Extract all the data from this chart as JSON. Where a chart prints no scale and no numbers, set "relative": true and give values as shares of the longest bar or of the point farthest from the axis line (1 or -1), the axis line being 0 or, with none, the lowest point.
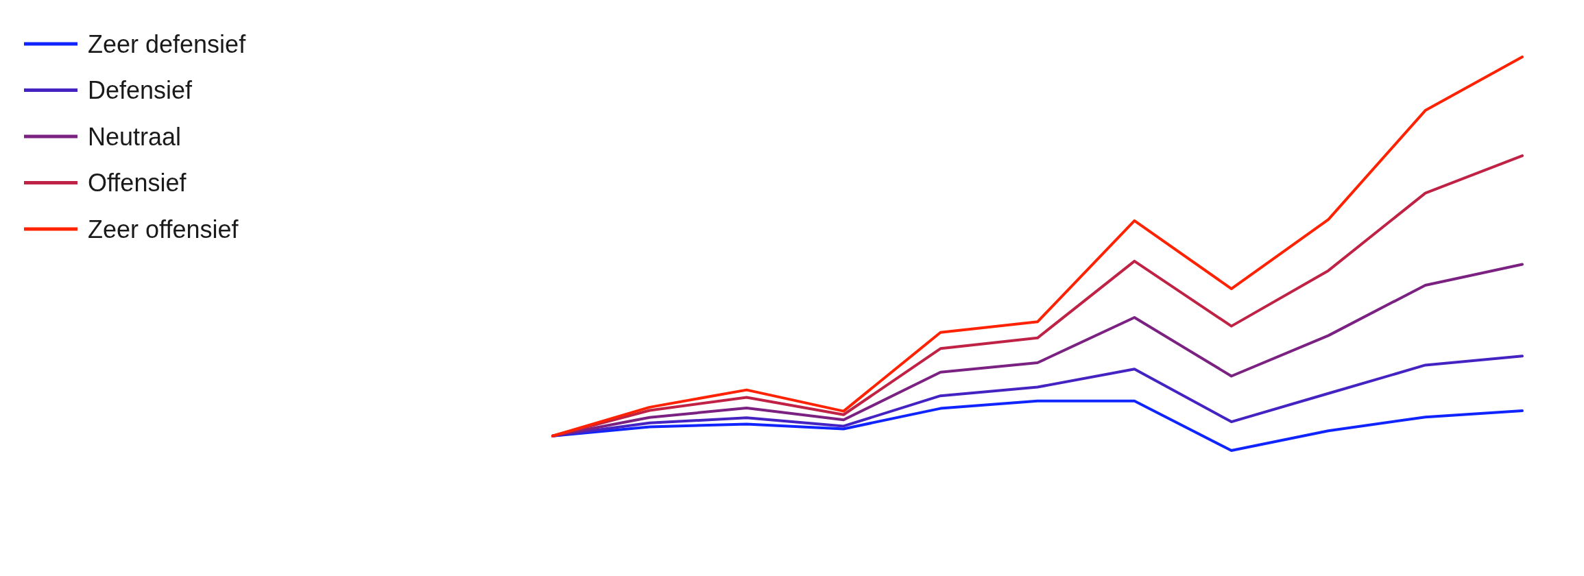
{
  "chart_data": {
    "type": "line",
    "relative": true,
    "legend": "top left",
    "categories": [
      null,
      null,
      null,
      null,
      null,
      null,
      null,
      null,
      null,
      null,
      null
    ],
    "series": [
      {
        "name": "Zeer defensief",
        "color": "#0f24ff",
        "values": [
          0.037,
          0.06,
          0.067,
          0.055,
          0.107,
          0.126,
          0.126,
          0,
          0.05,
          0.085,
          0.101
        ]
      },
      {
        "name": "Defensief",
        "color": "#4423c2",
        "values": [
          0.037,
          0.07,
          0.083,
          0.062,
          0.139,
          0.161,
          0.207,
          0.073,
          0.145,
          0.217,
          0.24
        ]
      },
      {
        "name": "Neutraal",
        "color": "#7b2182",
        "values": [
          0.037,
          0.084,
          0.108,
          0.078,
          0.199,
          0.223,
          0.338,
          0.189,
          0.292,
          0.42,
          0.473
        ]
      },
      {
        "name": "Offensief",
        "color": "#bf2244",
        "values": [
          0.037,
          0.102,
          0.135,
          0.091,
          0.259,
          0.286,
          0.481,
          0.316,
          0.457,
          0.654,
          0.749
        ]
      },
      {
        "name": "Zeer offensief",
        "color": "#ff2200",
        "values": [
          0.037,
          0.11,
          0.154,
          0.1,
          0.3,
          0.327,
          0.584,
          0.411,
          0.587,
          0.864,
          1
        ]
      }
    ]
  }
}
